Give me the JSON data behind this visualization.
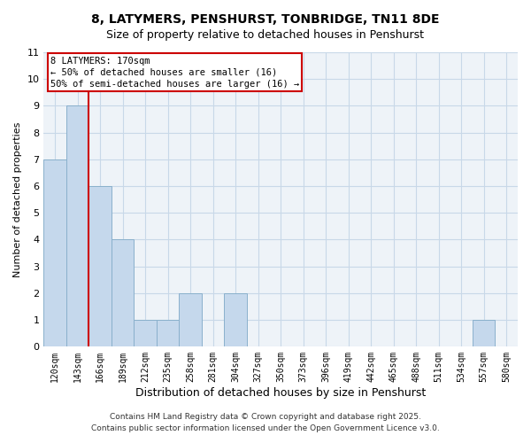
{
  "title": "8, LATYMERS, PENSHURST, TONBRIDGE, TN11 8DE",
  "subtitle": "Size of property relative to detached houses in Penshurst",
  "xlabel": "Distribution of detached houses by size in Penshurst",
  "ylabel": "Number of detached properties",
  "footer_line1": "Contains HM Land Registry data © Crown copyright and database right 2025.",
  "footer_line2": "Contains public sector information licensed under the Open Government Licence v3.0.",
  "bin_labels": [
    "120sqm",
    "143sqm",
    "166sqm",
    "189sqm",
    "212sqm",
    "235sqm",
    "258sqm",
    "281sqm",
    "304sqm",
    "327sqm",
    "350sqm",
    "373sqm",
    "396sqm",
    "419sqm",
    "442sqm",
    "465sqm",
    "488sqm",
    "511sqm",
    "534sqm",
    "557sqm",
    "580sqm"
  ],
  "bar_values": [
    7,
    9,
    6,
    4,
    1,
    1,
    2,
    0,
    2,
    0,
    0,
    0,
    0,
    0,
    0,
    0,
    0,
    0,
    0,
    1,
    0
  ],
  "bar_color": "#c5d8ec",
  "bar_edge_color": "#8ab0cc",
  "grid_color": "#c8d8e8",
  "background_color": "#eef3f8",
  "vline_x_index": 2.0,
  "vline_color": "#cc0000",
  "annotation_title": "8 LATYMERS: 170sqm",
  "annotation_line2": "← 50% of detached houses are smaller (16)",
  "annotation_line3": "50% of semi-detached houses are larger (16) →",
  "ylim": [
    0,
    11
  ],
  "yticks": [
    0,
    1,
    2,
    3,
    4,
    5,
    6,
    7,
    8,
    9,
    10,
    11
  ]
}
